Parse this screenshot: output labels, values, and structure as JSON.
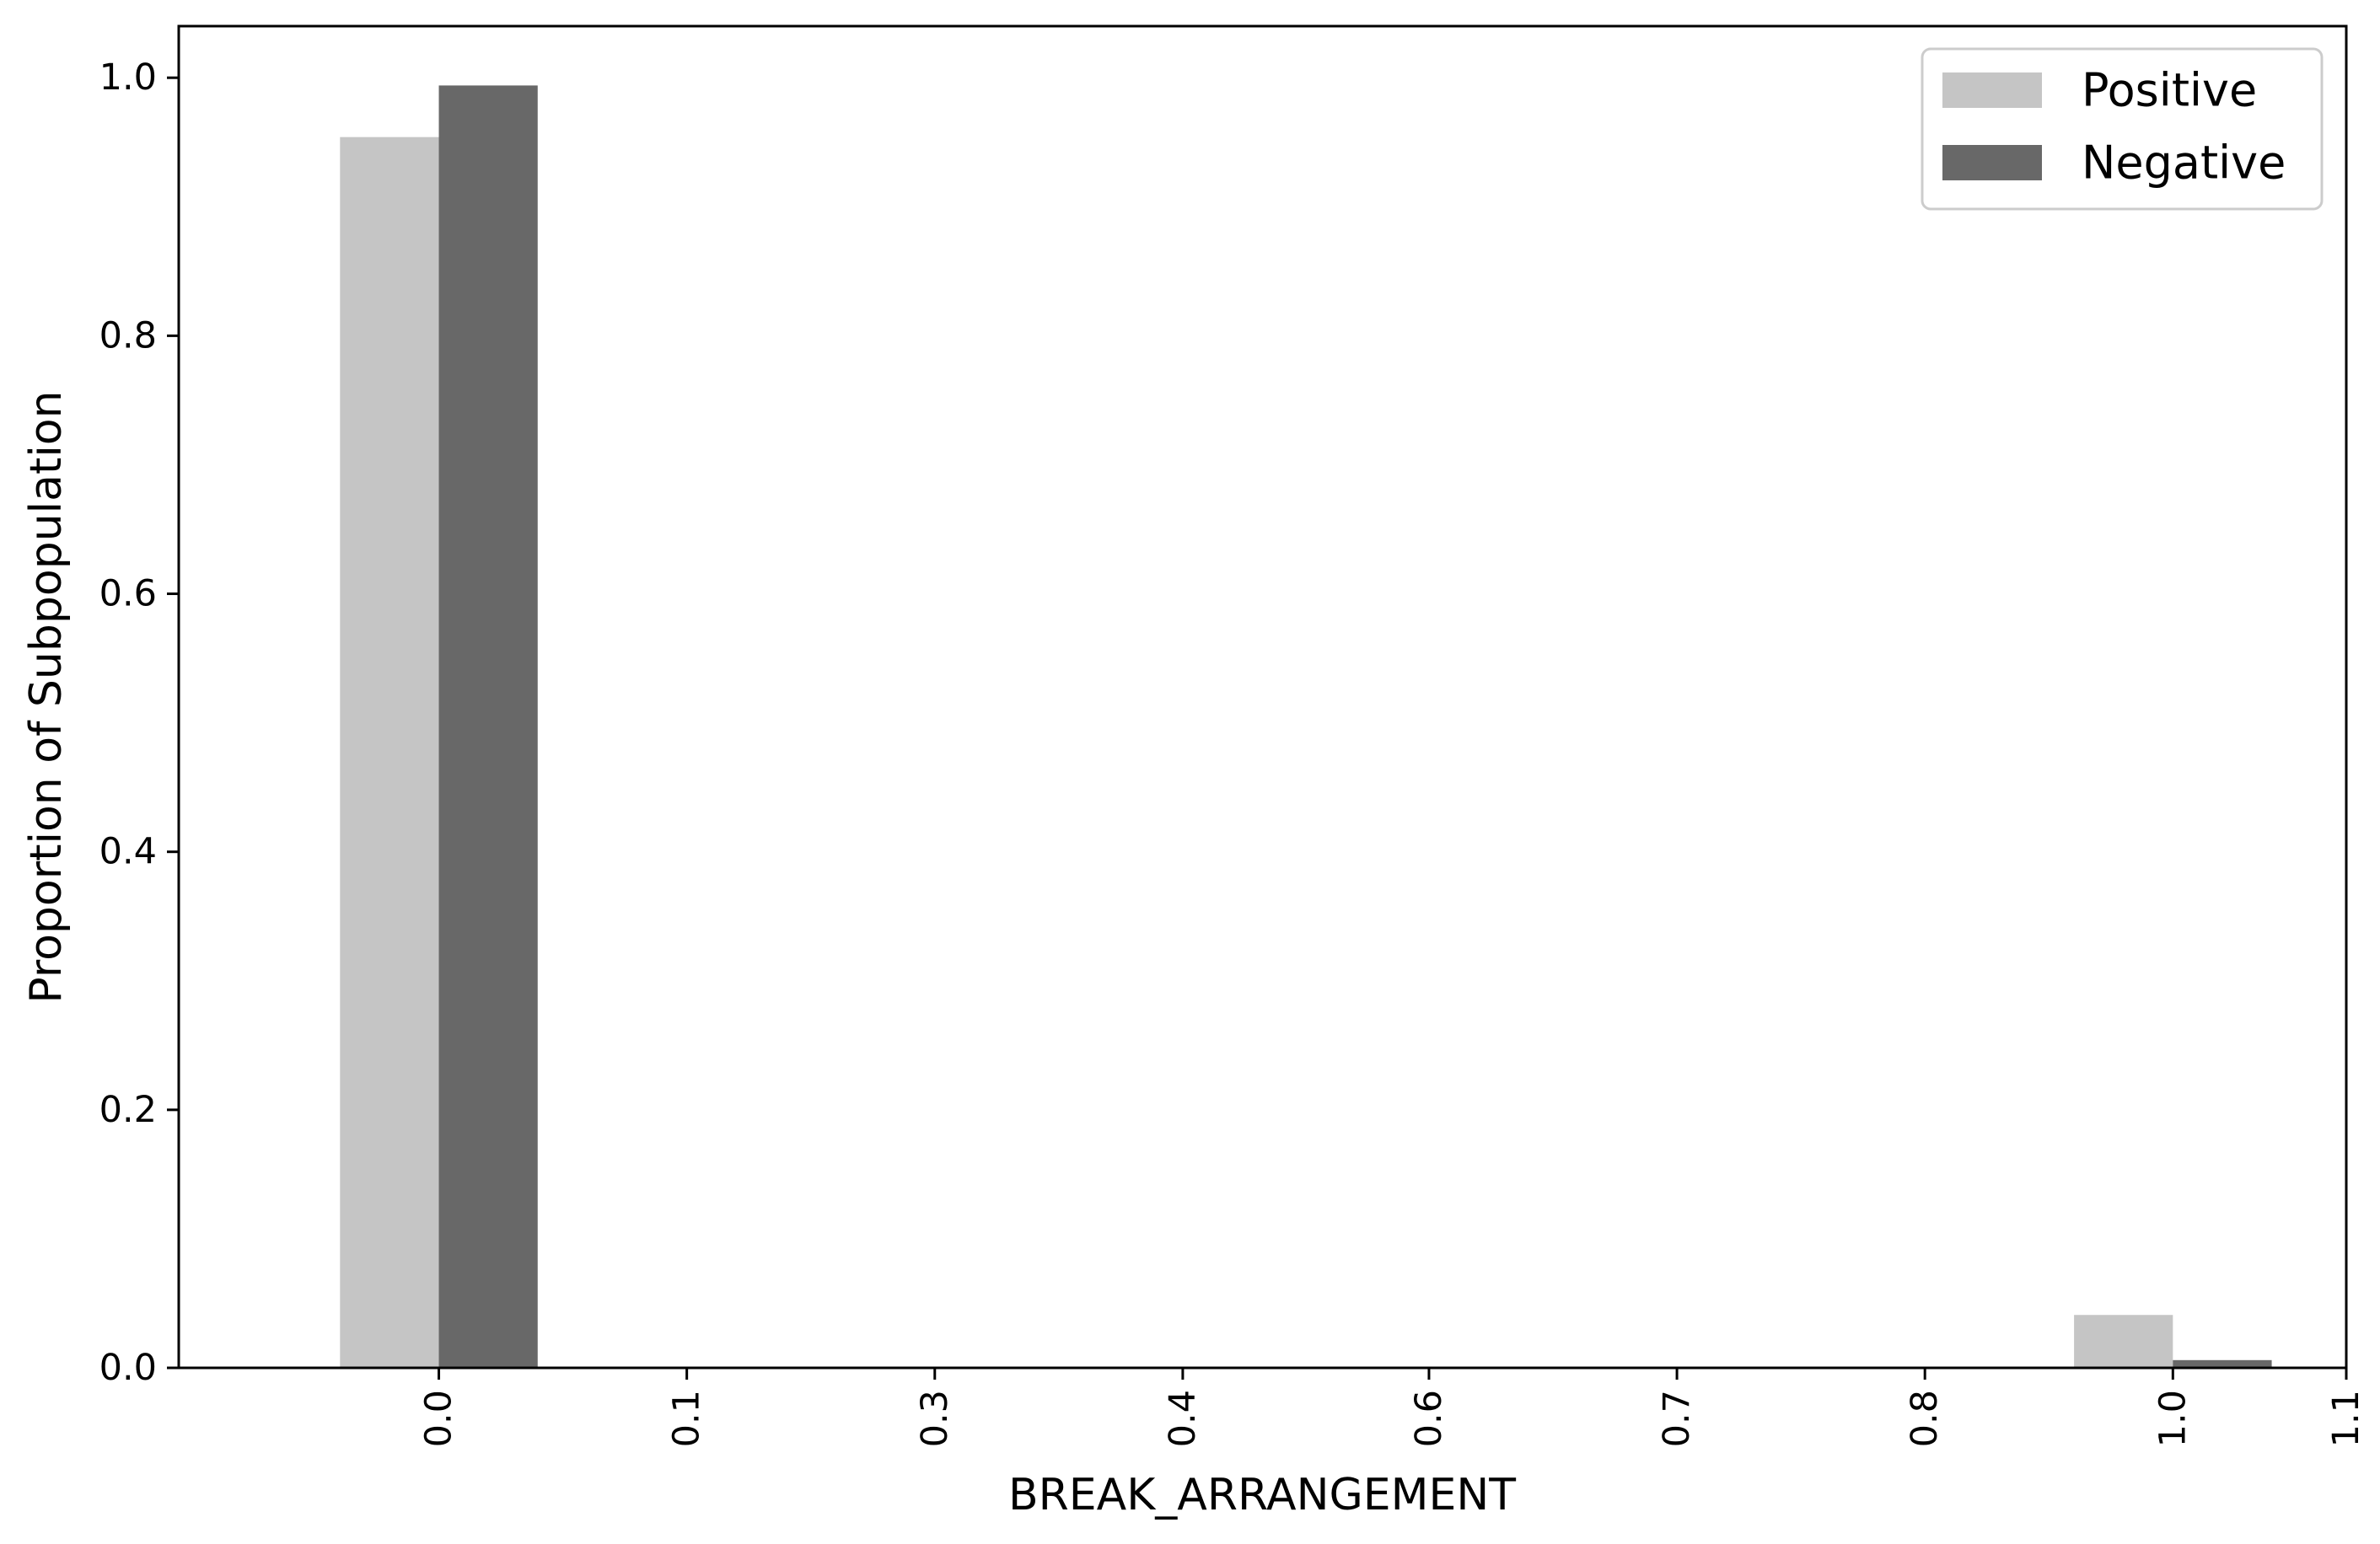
{
  "chart_data": {
    "type": "bar",
    "xlabel": "BREAK_ARRANGEMENT",
    "ylabel": "Proportion of Subpopulation",
    "xlim": [
      -0.15,
      1.1
    ],
    "ylim": [
      0.0,
      1.04
    ],
    "x_ticks": [
      {
        "value": 0.0,
        "label": "0.0"
      },
      {
        "value": 0.143,
        "label": "0.1"
      },
      {
        "value": 0.286,
        "label": "0.3"
      },
      {
        "value": 0.429,
        "label": "0.4"
      },
      {
        "value": 0.571,
        "label": "0.6"
      },
      {
        "value": 0.714,
        "label": "0.7"
      },
      {
        "value": 0.857,
        "label": "0.8"
      },
      {
        "value": 1.0,
        "label": "1.0"
      },
      {
        "value": 1.1,
        "label": "1.1"
      }
    ],
    "y_ticks": [
      {
        "value": 0.0,
        "label": "0.0"
      },
      {
        "value": 0.2,
        "label": "0.2"
      },
      {
        "value": 0.4,
        "label": "0.4"
      },
      {
        "value": 0.6,
        "label": "0.6"
      },
      {
        "value": 0.8,
        "label": "0.8"
      },
      {
        "value": 1.0,
        "label": "1.0"
      }
    ],
    "bar_width": 0.057,
    "x": [
      0.0,
      1.0
    ],
    "series": [
      {
        "name": "Positive",
        "color": "#c5c5c5",
        "offset": "left",
        "values": [
          0.954,
          0.041
        ]
      },
      {
        "name": "Negative",
        "color": "#686868",
        "offset": "right",
        "values": [
          0.994,
          0.006
        ]
      }
    ],
    "grid": false,
    "legend_position": "top-right"
  }
}
